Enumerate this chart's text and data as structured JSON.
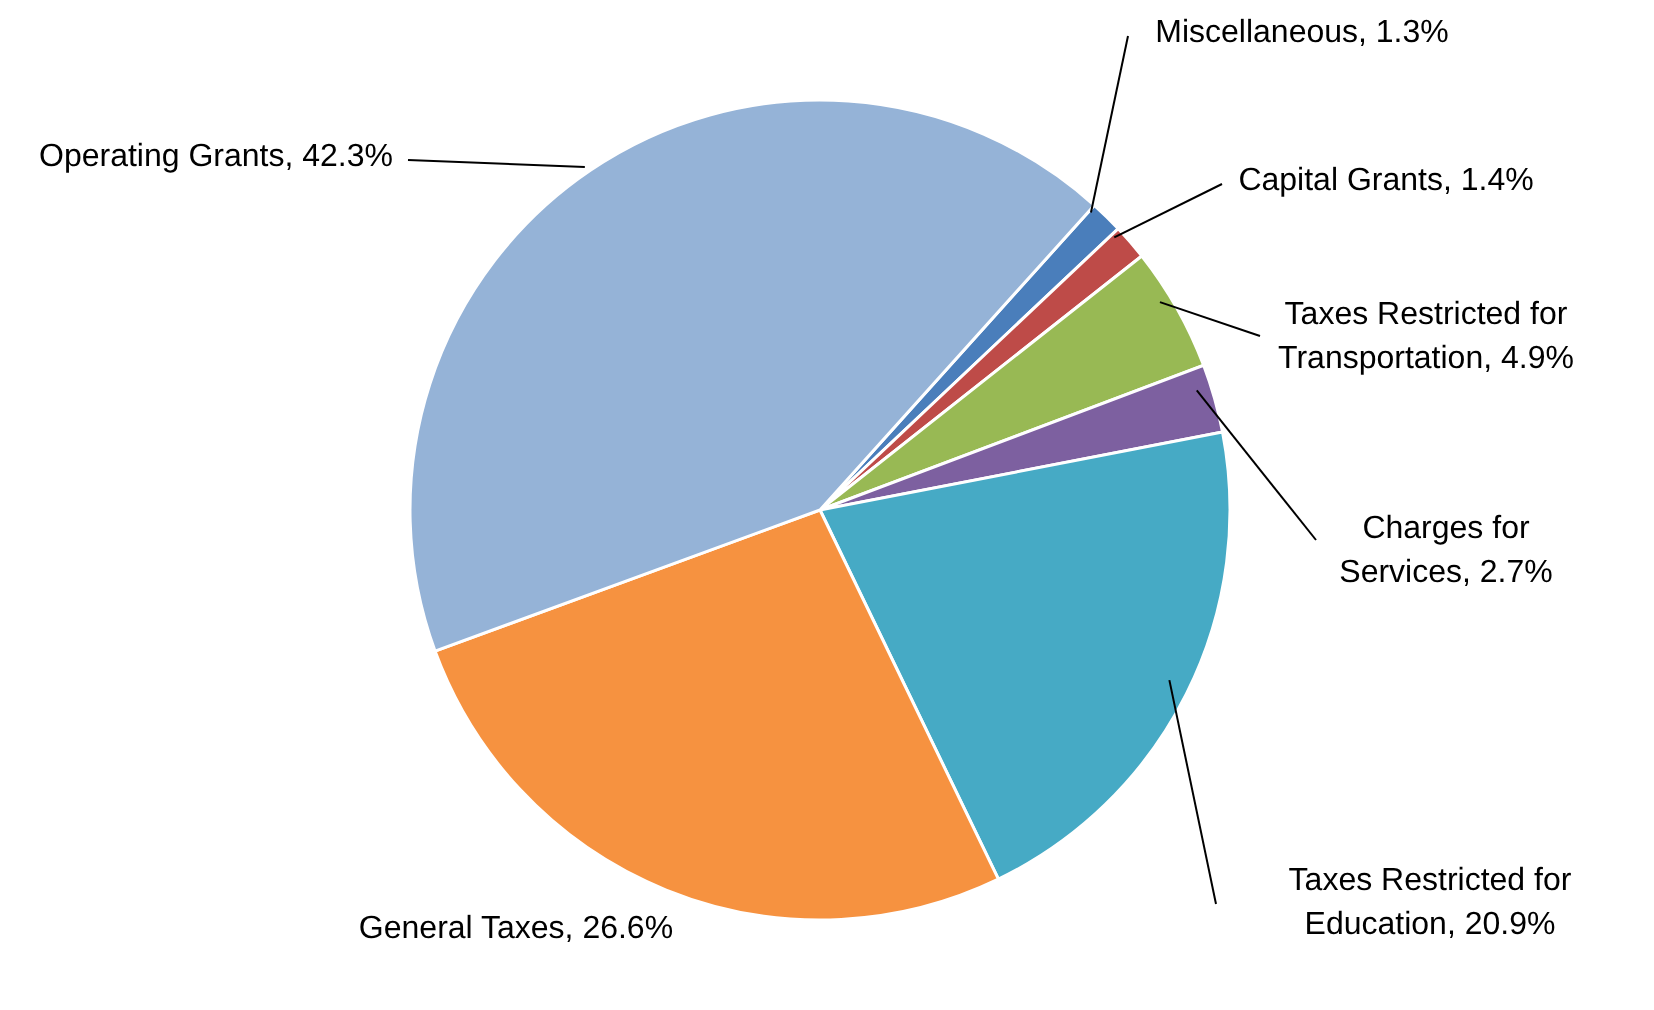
{
  "chart_data": {
    "type": "pie",
    "categories": [
      "Miscellaneous",
      "Capital Grants",
      "Taxes Restricted for Transportation",
      "Charges for Services",
      "Taxes Restricted for Education",
      "General Taxes",
      "Operating Grants"
    ],
    "values": [
      1.3,
      1.4,
      4.9,
      2.7,
      20.9,
      26.6,
      42.3
    ],
    "value_labels": [
      "1.3%",
      "1.4%",
      "4.9%",
      "2.7%",
      "20.9%",
      "26.6%",
      "42.3%"
    ],
    "colors": [
      "#4a7ebb",
      "#be4b48",
      "#98b954",
      "#7d60a0",
      "#46aac5",
      "#f69240",
      "#95b3d7"
    ],
    "legend": false
  }
}
